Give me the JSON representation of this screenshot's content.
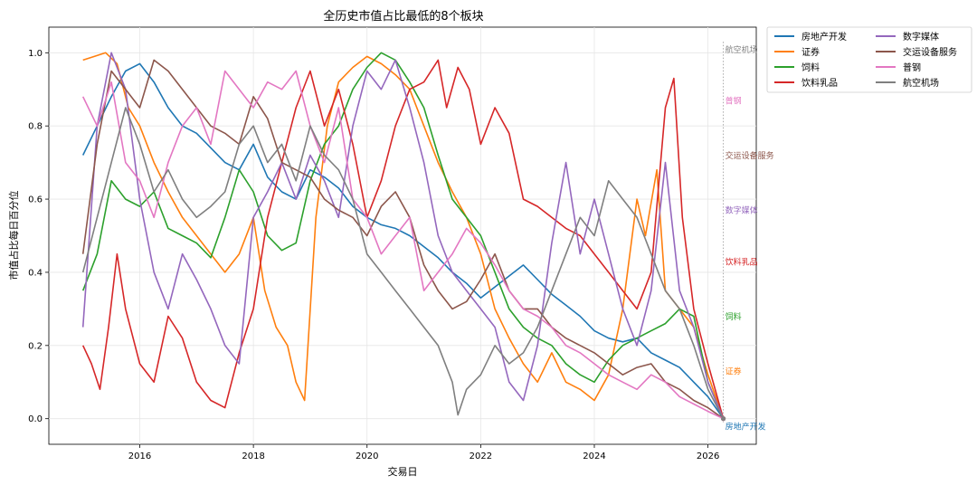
{
  "chart_data": {
    "type": "line",
    "title": "全历史市值占比最低的8个板块",
    "xlabel": "交易日",
    "ylabel": "市值占比每日百分位",
    "xlim": [
      2014.4,
      2026.85
    ],
    "ylim": [
      -0.07,
      1.07
    ],
    "x_ticks": [
      2016,
      2018,
      2020,
      2022,
      2024,
      2026
    ],
    "x_tick_labels": [
      "2016",
      "2018",
      "2020",
      "2022",
      "2024",
      "2026"
    ],
    "y_ticks": [
      0.0,
      0.2,
      0.4,
      0.6,
      0.8,
      1.0
    ],
    "y_tick_labels": [
      "0.0",
      "0.2",
      "0.4",
      "0.6",
      "0.8",
      "1.0"
    ],
    "grid": true,
    "legend_position": "outside-top-right",
    "legend_columns": 2,
    "end_marker_x": 2026.27,
    "series": [
      {
        "name": "房地产开发",
        "color": "#1f77b4",
        "end_label": "房地产开发",
        "end_label_y": -0.02,
        "x": [
          2015.0,
          2015.25,
          2015.5,
          2015.75,
          2016.0,
          2016.25,
          2016.5,
          2016.75,
          2017.0,
          2017.25,
          2017.5,
          2017.75,
          2018.0,
          2018.25,
          2018.5,
          2018.75,
          2019.0,
          2019.25,
          2019.5,
          2019.75,
          2020.0,
          2020.25,
          2020.5,
          2020.75,
          2021.0,
          2021.25,
          2021.5,
          2021.75,
          2022.0,
          2022.25,
          2022.5,
          2022.75,
          2023.0,
          2023.25,
          2023.5,
          2023.75,
          2024.0,
          2024.25,
          2024.5,
          2024.75,
          2025.0,
          2025.25,
          2025.5,
          2025.75,
          2026.0,
          2026.27
        ],
        "y": [
          0.72,
          0.8,
          0.88,
          0.95,
          0.97,
          0.92,
          0.85,
          0.8,
          0.78,
          0.74,
          0.7,
          0.68,
          0.75,
          0.66,
          0.62,
          0.6,
          0.68,
          0.66,
          0.63,
          0.58,
          0.55,
          0.53,
          0.52,
          0.5,
          0.47,
          0.44,
          0.4,
          0.37,
          0.33,
          0.36,
          0.39,
          0.42,
          0.38,
          0.34,
          0.31,
          0.28,
          0.24,
          0.22,
          0.21,
          0.22,
          0.18,
          0.16,
          0.14,
          0.1,
          0.06,
          0.0
        ]
      },
      {
        "name": "证券",
        "color": "#ff7f0e",
        "end_label": "证券",
        "end_label_y": 0.13,
        "x": [
          2015.0,
          2015.2,
          2015.4,
          2015.6,
          2015.8,
          2016.0,
          2016.25,
          2016.5,
          2016.75,
          2017.0,
          2017.25,
          2017.5,
          2017.75,
          2018.0,
          2018.2,
          2018.4,
          2018.6,
          2018.75,
          2018.9,
          2019.1,
          2019.3,
          2019.5,
          2019.75,
          2020.0,
          2020.25,
          2020.5,
          2020.75,
          2021.0,
          2021.25,
          2021.5,
          2021.75,
          2022.0,
          2022.25,
          2022.5,
          2022.75,
          2023.0,
          2023.25,
          2023.5,
          2023.75,
          2024.0,
          2024.25,
          2024.5,
          2024.75,
          2024.9,
          2025.1,
          2025.25,
          2025.5,
          2025.75,
          2026.0,
          2026.27
        ],
        "y": [
          0.98,
          0.99,
          1.0,
          0.97,
          0.85,
          0.8,
          0.7,
          0.62,
          0.55,
          0.5,
          0.45,
          0.4,
          0.45,
          0.55,
          0.35,
          0.25,
          0.2,
          0.1,
          0.05,
          0.55,
          0.8,
          0.92,
          0.96,
          0.99,
          0.97,
          0.94,
          0.9,
          0.8,
          0.7,
          0.62,
          0.55,
          0.45,
          0.3,
          0.22,
          0.15,
          0.1,
          0.18,
          0.1,
          0.08,
          0.05,
          0.12,
          0.3,
          0.6,
          0.5,
          0.68,
          0.35,
          0.3,
          0.25,
          0.12,
          0.0
        ]
      },
      {
        "name": "饲料",
        "color": "#2ca02c",
        "end_label": "饲料",
        "end_label_y": 0.28,
        "x": [
          2015.0,
          2015.25,
          2015.5,
          2015.75,
          2016.0,
          2016.25,
          2016.5,
          2016.75,
          2017.0,
          2017.25,
          2017.5,
          2017.75,
          2018.0,
          2018.25,
          2018.5,
          2018.75,
          2019.0,
          2019.25,
          2019.5,
          2019.75,
          2020.0,
          2020.25,
          2020.5,
          2020.75,
          2021.0,
          2021.25,
          2021.5,
          2021.75,
          2022.0,
          2022.25,
          2022.5,
          2022.75,
          2023.0,
          2023.25,
          2023.5,
          2023.75,
          2024.0,
          2024.25,
          2024.5,
          2024.75,
          2025.0,
          2025.25,
          2025.5,
          2025.75,
          2026.0,
          2026.27
        ],
        "y": [
          0.35,
          0.45,
          0.65,
          0.6,
          0.58,
          0.62,
          0.52,
          0.5,
          0.48,
          0.44,
          0.55,
          0.68,
          0.62,
          0.5,
          0.46,
          0.48,
          0.65,
          0.75,
          0.8,
          0.9,
          0.96,
          1.0,
          0.98,
          0.92,
          0.85,
          0.72,
          0.6,
          0.55,
          0.5,
          0.4,
          0.3,
          0.25,
          0.22,
          0.2,
          0.15,
          0.12,
          0.1,
          0.16,
          0.2,
          0.22,
          0.24,
          0.26,
          0.3,
          0.28,
          0.1,
          0.0
        ]
      },
      {
        "name": "饮料乳品",
        "color": "#d62728",
        "end_label": "饮料乳品",
        "end_label_y": 0.43,
        "x": [
          2015.0,
          2015.15,
          2015.3,
          2015.45,
          2015.6,
          2015.75,
          2016.0,
          2016.25,
          2016.5,
          2016.75,
          2017.0,
          2017.25,
          2017.5,
          2017.75,
          2018.0,
          2018.25,
          2018.5,
          2018.75,
          2019.0,
          2019.25,
          2019.5,
          2019.75,
          2020.0,
          2020.25,
          2020.5,
          2020.75,
          2021.0,
          2021.25,
          2021.4,
          2021.6,
          2021.8,
          2022.0,
          2022.25,
          2022.5,
          2022.75,
          2023.0,
          2023.25,
          2023.5,
          2023.75,
          2024.0,
          2024.25,
          2024.5,
          2024.75,
          2025.0,
          2025.25,
          2025.4,
          2025.55,
          2025.75,
          2026.0,
          2026.27
        ],
        "y": [
          0.2,
          0.15,
          0.08,
          0.25,
          0.45,
          0.3,
          0.15,
          0.1,
          0.28,
          0.22,
          0.1,
          0.05,
          0.03,
          0.18,
          0.3,
          0.55,
          0.7,
          0.85,
          0.95,
          0.8,
          0.9,
          0.75,
          0.55,
          0.65,
          0.8,
          0.9,
          0.92,
          0.98,
          0.85,
          0.96,
          0.9,
          0.75,
          0.85,
          0.78,
          0.6,
          0.58,
          0.55,
          0.52,
          0.5,
          0.45,
          0.4,
          0.35,
          0.3,
          0.4,
          0.85,
          0.93,
          0.55,
          0.3,
          0.15,
          0.0
        ]
      },
      {
        "name": "数字媒体",
        "color": "#9467bd",
        "end_label": "数字媒体",
        "end_label_y": 0.57,
        "x": [
          2015.0,
          2015.25,
          2015.5,
          2015.75,
          2016.0,
          2016.25,
          2016.5,
          2016.75,
          2017.0,
          2017.25,
          2017.5,
          2017.75,
          2018.0,
          2018.25,
          2018.5,
          2018.75,
          2019.0,
          2019.25,
          2019.5,
          2019.75,
          2020.0,
          2020.25,
          2020.5,
          2020.75,
          2021.0,
          2021.25,
          2021.5,
          2021.75,
          2022.0,
          2022.25,
          2022.5,
          2022.75,
          2023.0,
          2023.25,
          2023.5,
          2023.75,
          2024.0,
          2024.25,
          2024.5,
          2024.75,
          2025.0,
          2025.25,
          2025.5,
          2025.75,
          2026.0,
          2026.27
        ],
        "y": [
          0.25,
          0.8,
          1.0,
          0.9,
          0.6,
          0.4,
          0.3,
          0.45,
          0.38,
          0.3,
          0.2,
          0.15,
          0.55,
          0.62,
          0.7,
          0.6,
          0.72,
          0.65,
          0.55,
          0.8,
          0.95,
          0.9,
          0.98,
          0.85,
          0.7,
          0.5,
          0.4,
          0.35,
          0.3,
          0.25,
          0.1,
          0.05,
          0.2,
          0.48,
          0.7,
          0.45,
          0.6,
          0.45,
          0.3,
          0.2,
          0.35,
          0.7,
          0.35,
          0.25,
          0.1,
          0.0
        ]
      },
      {
        "name": "交运设备服务",
        "color": "#8c564b",
        "end_label": "交运设备服务",
        "end_label_y": 0.72,
        "x": [
          2015.0,
          2015.25,
          2015.5,
          2015.75,
          2016.0,
          2016.25,
          2016.5,
          2016.75,
          2017.0,
          2017.25,
          2017.5,
          2017.75,
          2018.0,
          2018.25,
          2018.5,
          2018.75,
          2019.0,
          2019.25,
          2019.5,
          2019.75,
          2020.0,
          2020.25,
          2020.5,
          2020.75,
          2021.0,
          2021.25,
          2021.5,
          2021.75,
          2022.0,
          2022.25,
          2022.5,
          2022.75,
          2023.0,
          2023.25,
          2023.5,
          2023.75,
          2024.0,
          2024.25,
          2024.5,
          2024.75,
          2025.0,
          2025.25,
          2025.5,
          2025.75,
          2026.0,
          2026.27
        ],
        "y": [
          0.45,
          0.75,
          0.95,
          0.9,
          0.85,
          0.98,
          0.95,
          0.9,
          0.85,
          0.8,
          0.78,
          0.75,
          0.88,
          0.82,
          0.7,
          0.68,
          0.66,
          0.6,
          0.57,
          0.55,
          0.5,
          0.58,
          0.62,
          0.55,
          0.42,
          0.35,
          0.3,
          0.32,
          0.38,
          0.45,
          0.35,
          0.3,
          0.3,
          0.25,
          0.22,
          0.2,
          0.18,
          0.15,
          0.12,
          0.14,
          0.15,
          0.1,
          0.08,
          0.05,
          0.03,
          0.0
        ]
      },
      {
        "name": "普钢",
        "color": "#e377c2",
        "end_label": "普钢",
        "end_label_y": 0.87,
        "x": [
          2015.0,
          2015.25,
          2015.5,
          2015.75,
          2016.0,
          2016.25,
          2016.5,
          2016.75,
          2017.0,
          2017.25,
          2017.5,
          2017.75,
          2018.0,
          2018.25,
          2018.5,
          2018.75,
          2019.0,
          2019.25,
          2019.5,
          2019.75,
          2020.0,
          2020.25,
          2020.5,
          2020.75,
          2021.0,
          2021.25,
          2021.5,
          2021.75,
          2022.0,
          2022.25,
          2022.5,
          2022.75,
          2023.0,
          2023.25,
          2023.5,
          2023.75,
          2024.0,
          2024.25,
          2024.5,
          2024.75,
          2025.0,
          2025.25,
          2025.5,
          2025.75,
          2026.0,
          2026.27
        ],
        "y": [
          0.88,
          0.8,
          0.92,
          0.7,
          0.65,
          0.55,
          0.7,
          0.8,
          0.85,
          0.75,
          0.95,
          0.9,
          0.85,
          0.92,
          0.9,
          0.95,
          0.8,
          0.7,
          0.85,
          0.6,
          0.55,
          0.45,
          0.5,
          0.55,
          0.35,
          0.4,
          0.45,
          0.52,
          0.48,
          0.42,
          0.35,
          0.3,
          0.28,
          0.25,
          0.2,
          0.18,
          0.15,
          0.12,
          0.1,
          0.08,
          0.12,
          0.1,
          0.06,
          0.04,
          0.02,
          0.0
        ]
      },
      {
        "name": "航空机场",
        "color": "#7f7f7f",
        "end_label": "航空机场",
        "end_label_y": 1.01,
        "x": [
          2015.0,
          2015.25,
          2015.5,
          2015.75,
          2016.0,
          2016.25,
          2016.5,
          2016.75,
          2017.0,
          2017.25,
          2017.5,
          2017.75,
          2018.0,
          2018.25,
          2018.5,
          2018.75,
          2019.0,
          2019.25,
          2019.5,
          2019.75,
          2020.0,
          2020.25,
          2020.5,
          2020.75,
          2021.0,
          2021.25,
          2021.5,
          2021.6,
          2021.75,
          2022.0,
          2022.25,
          2022.5,
          2022.75,
          2023.0,
          2023.25,
          2023.5,
          2023.75,
          2024.0,
          2024.25,
          2024.5,
          2024.75,
          2025.0,
          2025.25,
          2025.5,
          2025.75,
          2026.0,
          2026.27
        ],
        "y": [
          0.4,
          0.55,
          0.7,
          0.85,
          0.75,
          0.62,
          0.68,
          0.6,
          0.55,
          0.58,
          0.62,
          0.75,
          0.8,
          0.7,
          0.75,
          0.65,
          0.8,
          0.72,
          0.68,
          0.6,
          0.45,
          0.4,
          0.35,
          0.3,
          0.25,
          0.2,
          0.1,
          0.01,
          0.08,
          0.12,
          0.2,
          0.15,
          0.18,
          0.25,
          0.35,
          0.45,
          0.55,
          0.5,
          0.65,
          0.6,
          0.55,
          0.45,
          0.35,
          0.3,
          0.2,
          0.08,
          0.0
        ]
      }
    ]
  }
}
